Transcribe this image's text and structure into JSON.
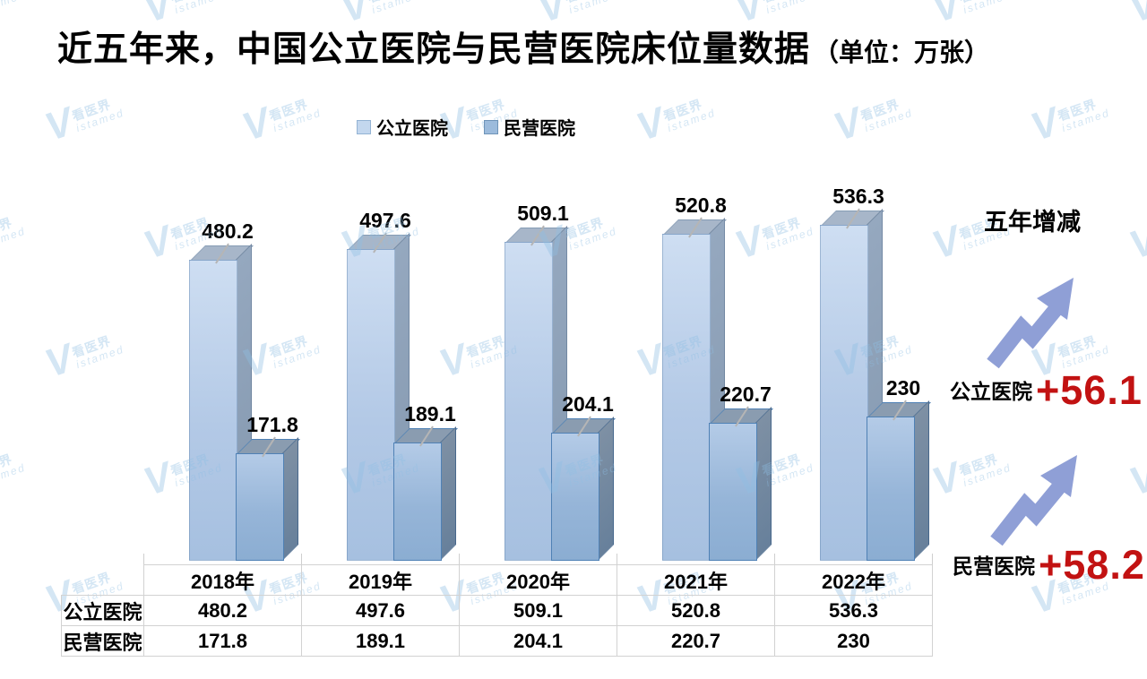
{
  "title": {
    "main": "近五年来，中国公立医院与民营医院床位量数据",
    "unit": "（单位：万张）"
  },
  "legend": [
    {
      "label": "公立医院",
      "color": "#c3d7ee"
    },
    {
      "label": "民营医院",
      "color": "#9cbbdc"
    }
  ],
  "chart_data": {
    "type": "bar",
    "style": "3d-clustered-column",
    "title": "近五年来，中国公立医院与民营医院床位量数据（单位：万张）",
    "categories": [
      "2018年",
      "2019年",
      "2020年",
      "2021年",
      "2022年"
    ],
    "series": [
      {
        "name": "公立医院",
        "values": [
          480.2,
          497.6,
          509.1,
          520.8,
          536.3
        ],
        "front_color": "#b7cde9",
        "side_color": "#8a9db4",
        "top_color": "#a7b6c9"
      },
      {
        "name": "民营医院",
        "values": [
          171.8,
          189.1,
          204.1,
          220.7,
          230
        ],
        "front_color": "#9cbbdc",
        "side_color": "#72889f",
        "top_color": "#8a9cb0"
      }
    ],
    "unit": "万张",
    "ylim": [
      0,
      560
    ],
    "grid": false,
    "legend_position": "top",
    "value_labels": true,
    "data_table": true
  },
  "summary": {
    "heading": "五年增减",
    "items": [
      {
        "label": "公立医院",
        "change": "+56.1"
      },
      {
        "label": "民营医院",
        "change": "+58.2"
      }
    ],
    "change_color": "#c21212",
    "arrow_color": "#8f9fd6"
  },
  "watermark": {
    "v": "V",
    "cn": "看医界",
    "en": "istamed"
  }
}
